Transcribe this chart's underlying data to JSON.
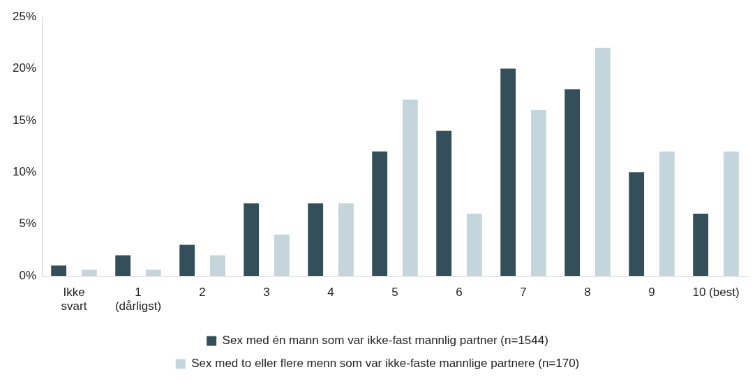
{
  "chart_data": {
    "type": "bar",
    "categories": [
      "Ikke svart",
      "1 (dårligst)",
      "2",
      "3",
      "4",
      "5",
      "6",
      "7",
      "8",
      "9",
      "10 (best)"
    ],
    "series": [
      {
        "name": "Sex med én mann som var ikke-fast mannlig partner (n=1544)",
        "color": "#344f5a",
        "values": [
          1,
          2,
          3,
          7,
          7,
          12,
          14,
          20,
          18,
          10,
          6
        ]
      },
      {
        "name": "Sex med to eller flere menn som var ikke-faste mannlige partnere (n=170)",
        "color": "#c5d5dc",
        "values": [
          0.6,
          0.6,
          2,
          4,
          7,
          17,
          6,
          16,
          22,
          12,
          12
        ]
      }
    ],
    "ylim": [
      0,
      25
    ],
    "yticks": [
      {
        "value": 0,
        "label": "0%"
      },
      {
        "value": 5,
        "label": "5%"
      },
      {
        "value": 10,
        "label": "10%"
      },
      {
        "value": 15,
        "label": "15%"
      },
      {
        "value": 20,
        "label": "20%"
      },
      {
        "value": 25,
        "label": "25%"
      }
    ],
    "grid": false,
    "legend": "bottom"
  }
}
